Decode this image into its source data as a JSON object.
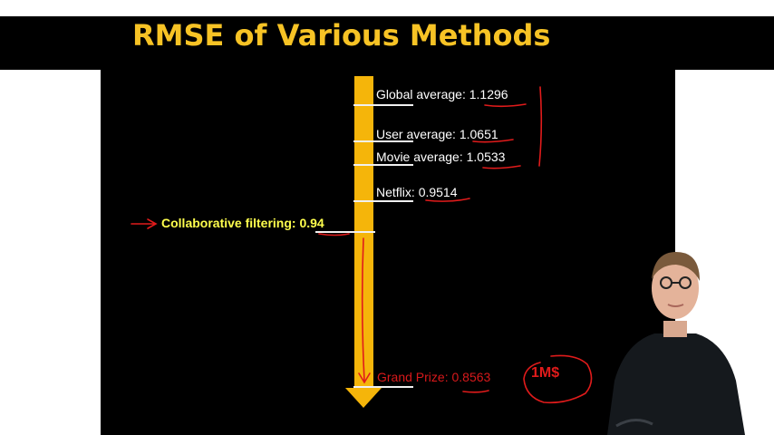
{
  "slide": {
    "title": "RMSE of Various Methods",
    "entries": [
      {
        "label": "Global average:",
        "value": "1.1296"
      },
      {
        "label": "User average:",
        "value": "1.0651"
      },
      {
        "label": "Movie average:",
        "value": "1.0533"
      },
      {
        "label": "Netflix:",
        "value": "0.9514"
      }
    ],
    "collaborative": {
      "label": "Collaborative filtering:",
      "value": "0.94"
    },
    "grand_prize": {
      "label": "Grand Prize:",
      "value": "0.8563"
    },
    "annotation": "1M$"
  },
  "colors": {
    "title": "#f7c325",
    "arrow": "#f5b50a",
    "highlight": "#ffff4d",
    "ink": "#e01b1b"
  }
}
